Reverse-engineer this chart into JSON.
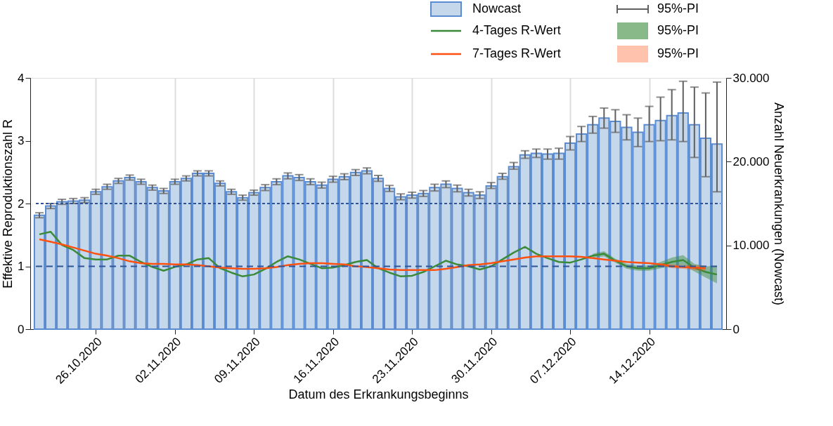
{
  "chart_data": {
    "type": "bar",
    "xlabel": "Datum des Erkrankungsbeginns",
    "ylabel": "Effektive Reproduktionszahl R",
    "y2label": "Anzahl Neuerkrankungen (Nowcast)",
    "x": [
      "2020-10-21",
      "2020-10-22",
      "2020-10-23",
      "2020-10-24",
      "2020-10-25",
      "2020-10-26",
      "2020-10-27",
      "2020-10-28",
      "2020-10-29",
      "2020-10-30",
      "2020-10-31",
      "2020-11-01",
      "2020-11-02",
      "2020-11-03",
      "2020-11-04",
      "2020-11-05",
      "2020-11-06",
      "2020-11-07",
      "2020-11-08",
      "2020-11-09",
      "2020-11-10",
      "2020-11-11",
      "2020-11-12",
      "2020-11-13",
      "2020-11-14",
      "2020-11-15",
      "2020-11-16",
      "2020-11-17",
      "2020-11-18",
      "2020-11-19",
      "2020-11-20",
      "2020-11-21",
      "2020-11-22",
      "2020-11-23",
      "2020-11-24",
      "2020-11-25",
      "2020-11-26",
      "2020-11-27",
      "2020-11-28",
      "2020-11-29",
      "2020-11-30",
      "2020-12-01",
      "2020-12-02",
      "2020-12-03",
      "2020-12-04",
      "2020-12-05",
      "2020-12-06",
      "2020-12-07",
      "2020-12-08",
      "2020-12-09",
      "2020-12-10",
      "2020-12-11",
      "2020-12-12",
      "2020-12-13",
      "2020-12-14",
      "2020-12-15",
      "2020-12-16",
      "2020-12-17",
      "2020-12-18",
      "2020-12-19",
      "2020-12-20"
    ],
    "series": [
      {
        "name": "Nowcast",
        "axis": "y2",
        "color": "#c5d7ea",
        "values": [
          13600,
          14700,
          15200,
          15300,
          15400,
          16400,
          17000,
          17700,
          18100,
          17600,
          16900,
          16500,
          17600,
          18000,
          18600,
          18600,
          17400,
          16400,
          15700,
          16300,
          16900,
          17600,
          18300,
          18100,
          17600,
          17200,
          17900,
          18200,
          18700,
          18900,
          18000,
          16800,
          15800,
          16000,
          16200,
          16900,
          17300,
          16800,
          16300,
          16000,
          17100,
          18200,
          19400,
          20800,
          21000,
          20900,
          21000,
          22200,
          23300,
          24400,
          25200,
          24800,
          24100,
          23500,
          24400,
          24900,
          25500,
          25800,
          24400,
          22800,
          22100
        ],
        "errors": [
          300,
          300,
          300,
          300,
          300,
          300,
          300,
          300,
          300,
          300,
          300,
          300,
          300,
          300,
          300,
          300,
          300,
          300,
          300,
          300,
          350,
          350,
          350,
          350,
          350,
          350,
          350,
          350,
          350,
          350,
          350,
          350,
          350,
          350,
          350,
          400,
          400,
          400,
          400,
          400,
          [
            16800,
            17500
          ],
          [
            17900,
            18600
          ],
          [
            19100,
            19900
          ],
          [
            20400,
            21300
          ],
          [
            20500,
            21500
          ],
          [
            20300,
            21500
          ],
          [
            20300,
            21600
          ],
          [
            21400,
            23000
          ],
          [
            22400,
            24200
          ],
          [
            23400,
            25400
          ],
          [
            24000,
            26400
          ],
          [
            23500,
            26200
          ],
          [
            22600,
            25600
          ],
          [
            21800,
            25200
          ],
          [
            22400,
            26600
          ],
          [
            22500,
            27700
          ],
          [
            22600,
            28600
          ],
          [
            22400,
            29600
          ],
          [
            20500,
            28900
          ],
          [
            18200,
            28200
          ],
          [
            16400,
            29500
          ]
        ]
      },
      {
        "name": "4-Tages R-Wert",
        "type": "line",
        "color": "#3a8a3a",
        "values": [
          1.51,
          1.55,
          1.34,
          1.26,
          1.13,
          1.11,
          1.11,
          1.17,
          1.17,
          1.07,
          0.99,
          0.93,
          0.99,
          1.03,
          1.11,
          1.13,
          0.97,
          0.9,
          0.84,
          0.87,
          0.96,
          1.07,
          1.16,
          1.11,
          1.04,
          0.97,
          0.98,
          1.02,
          1.07,
          1.1,
          0.97,
          0.9,
          0.84,
          0.85,
          0.91,
          1.0,
          1.09,
          1.03,
          1.0,
          0.95,
          1.0,
          1.11,
          1.22,
          1.31,
          1.2,
          1.13,
          1.07,
          1.06,
          1.11,
          1.17,
          1.2,
          1.09,
          1.0,
          0.97,
          0.97,
          1.02,
          1.07,
          1.1,
          0.98,
          0.91,
          0.87
        ],
        "lower": [
          null,
          null,
          null,
          null,
          null,
          null,
          null,
          null,
          null,
          null,
          null,
          null,
          null,
          null,
          null,
          null,
          null,
          null,
          null,
          null,
          null,
          null,
          null,
          null,
          null,
          null,
          null,
          null,
          null,
          null,
          null,
          null,
          null,
          null,
          null,
          null,
          null,
          null,
          null,
          null,
          null,
          null,
          null,
          null,
          null,
          null,
          null,
          null,
          null,
          1.14,
          1.16,
          1.06,
          0.96,
          0.93,
          0.93,
          0.97,
          1.0,
          1.02,
          0.92,
          0.82,
          0.73
        ],
        "upper": [
          null,
          null,
          null,
          null,
          null,
          null,
          null,
          null,
          null,
          null,
          null,
          null,
          null,
          null,
          null,
          null,
          null,
          null,
          null,
          null,
          null,
          null,
          null,
          null,
          null,
          null,
          null,
          null,
          null,
          null,
          null,
          null,
          null,
          null,
          null,
          null,
          null,
          null,
          null,
          null,
          null,
          null,
          null,
          null,
          null,
          null,
          null,
          null,
          null,
          1.2,
          1.24,
          1.12,
          1.04,
          1.01,
          1.01,
          1.07,
          1.14,
          1.18,
          1.04,
          1.0,
          1.01
        ]
      },
      {
        "name": "7-Tages R-Wert",
        "type": "line",
        "color": "#ff5010",
        "values": [
          1.43,
          1.39,
          1.35,
          1.3,
          1.25,
          1.2,
          1.17,
          1.13,
          1.08,
          1.05,
          1.04,
          1.04,
          1.03,
          1.03,
          1.02,
          1.0,
          0.98,
          0.97,
          0.96,
          0.96,
          0.97,
          0.99,
          1.02,
          1.04,
          1.05,
          1.05,
          1.04,
          1.03,
          1.0,
          0.99,
          0.97,
          0.95,
          0.94,
          0.94,
          0.94,
          0.94,
          0.96,
          0.99,
          1.02,
          1.03,
          1.05,
          1.08,
          1.11,
          1.14,
          1.16,
          1.16,
          1.16,
          1.16,
          1.15,
          1.13,
          1.11,
          1.09,
          1.07,
          1.06,
          1.05,
          1.03,
          1.0,
          0.99,
          0.98,
          0.97,
          null
        ],
        "lower": [
          null,
          null,
          null,
          null,
          null,
          null,
          null,
          null,
          null,
          null,
          null,
          null,
          null,
          null,
          null,
          null,
          null,
          null,
          null,
          null,
          null,
          null,
          null,
          null,
          null,
          null,
          null,
          null,
          null,
          null,
          null,
          null,
          null,
          null,
          null,
          null,
          null,
          null,
          null,
          null,
          null,
          null,
          null,
          null,
          null,
          null,
          null,
          null,
          null,
          null,
          null,
          null,
          null,
          null,
          null,
          1.01,
          0.97,
          0.96,
          0.94,
          0.93,
          null
        ],
        "upper": [
          null,
          null,
          null,
          null,
          null,
          null,
          null,
          null,
          null,
          null,
          null,
          null,
          null,
          null,
          null,
          null,
          null,
          null,
          null,
          null,
          null,
          null,
          null,
          null,
          null,
          null,
          null,
          null,
          null,
          null,
          null,
          null,
          null,
          null,
          null,
          null,
          null,
          null,
          null,
          null,
          null,
          null,
          null,
          null,
          null,
          null,
          null,
          null,
          null,
          null,
          null,
          null,
          null,
          null,
          null,
          1.05,
          1.03,
          1.02,
          1.02,
          1.01,
          null
        ]
      }
    ],
    "xlim": [
      "2020-10-20T12:00",
      "2020-12-20T12:00"
    ],
    "xticks": [
      {
        "value": "2020-10-26",
        "label": "26.10.2020"
      },
      {
        "value": "2020-11-02",
        "label": "02.11.2020"
      },
      {
        "value": "2020-11-09",
        "label": "09.11.2020"
      },
      {
        "value": "2020-11-16",
        "label": "16.11.2020"
      },
      {
        "value": "2020-11-23",
        "label": "23.11.2020"
      },
      {
        "value": "2020-11-30",
        "label": "30.11.2020"
      },
      {
        "value": "2020-12-07",
        "label": "07.12.2020"
      },
      {
        "value": "2020-12-14",
        "label": "14.12.2020"
      }
    ],
    "ylim": [
      0,
      4
    ],
    "yticks": [
      0,
      1,
      2,
      3,
      4
    ],
    "y2lim": [
      0,
      30000
    ],
    "y2ticks": [
      0,
      {
        "value": 10000,
        "label": "10.000"
      },
      {
        "value": 20000,
        "label": "20.000"
      },
      {
        "value": 30000,
        "label": "30.000"
      }
    ],
    "ref_lines": [
      {
        "axis": "y",
        "value": 1,
        "color": "#2f5597",
        "line_style": "dashed"
      },
      {
        "axis": "y",
        "value": 2,
        "color": "#2f5597",
        "line_style": "dotted"
      }
    ],
    "annotations": [
      "95%-PI",
      "95%-PI",
      "95%-PI"
    ],
    "grid": "x",
    "legend": "top right",
    "line_style": "solid",
    "marker": "none"
  }
}
